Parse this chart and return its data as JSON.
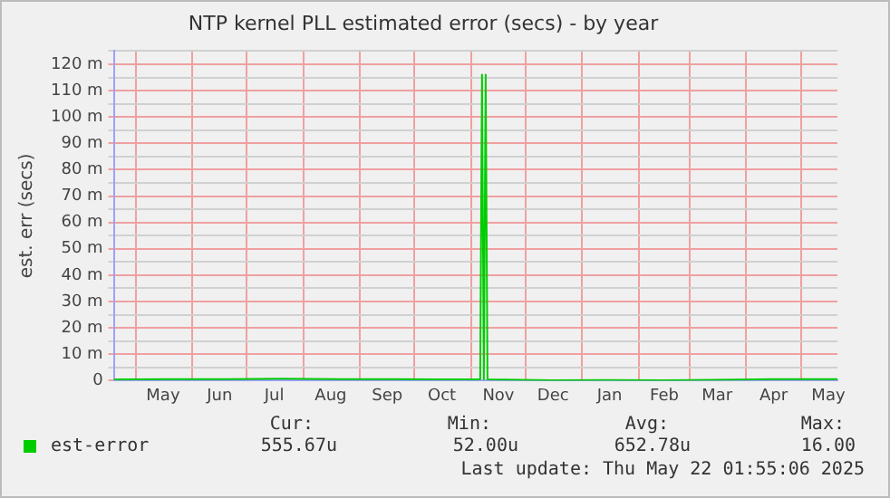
{
  "chart_data": {
    "type": "line",
    "title": "NTP kernel PLL estimated error (secs) - by year",
    "ylabel": "est. err (secs)",
    "x": [
      "2024-04-19",
      "2024-05-20",
      "2024-06-20",
      "2024-07-20",
      "2024-08-20",
      "2024-09-20",
      "2024-10-15",
      "2024-11-06",
      "2024-11-07",
      "2024-11-08",
      "2024-11-09",
      "2024-11-10",
      "2024-12-15",
      "2025-01-15",
      "2025-02-15",
      "2025-03-15",
      "2025-04-15",
      "2025-05-21"
    ],
    "series": [
      {
        "name": "est-error",
        "color": "#00cc00",
        "values": [
          0.5,
          0.6,
          0.6,
          0.7,
          0.6,
          0.6,
          0.5,
          0.5,
          116,
          0.5,
          116,
          0.5,
          0.1,
          0.2,
          0.1,
          0.3,
          0.6,
          0.6
        ]
      }
    ],
    "xlim": [
      "2024-04-19",
      "2025-05-21"
    ],
    "xticks": [
      {
        "value": "2024-05-01",
        "label": null
      },
      {
        "value": "2024-05-16",
        "label": "May"
      },
      {
        "value": "2024-06-01",
        "label": null
      },
      {
        "value": "2024-06-16",
        "label": "Jun"
      },
      {
        "value": "2024-07-01",
        "label": null
      },
      {
        "value": "2024-07-16",
        "label": "Jul"
      },
      {
        "value": "2024-08-01",
        "label": null
      },
      {
        "value": "2024-08-16",
        "label": "Aug"
      },
      {
        "value": "2024-09-01",
        "label": null
      },
      {
        "value": "2024-09-16",
        "label": "Sep"
      },
      {
        "value": "2024-10-01",
        "label": null
      },
      {
        "value": "2024-10-16",
        "label": "Oct"
      },
      {
        "value": "2024-11-01",
        "label": null
      },
      {
        "value": "2024-11-16",
        "label": "Nov"
      },
      {
        "value": "2024-12-01",
        "label": null
      },
      {
        "value": "2024-12-16",
        "label": "Dec"
      },
      {
        "value": "2025-01-01",
        "label": null
      },
      {
        "value": "2025-01-16",
        "label": "Jan"
      },
      {
        "value": "2025-02-01",
        "label": null
      },
      {
        "value": "2025-02-15",
        "label": "Feb"
      },
      {
        "value": "2025-03-01",
        "label": null
      },
      {
        "value": "2025-03-16",
        "label": "Mar"
      },
      {
        "value": "2025-04-01",
        "label": null
      },
      {
        "value": "2025-04-16",
        "label": "Apr"
      },
      {
        "value": "2025-05-01",
        "label": null
      },
      {
        "value": "2025-05-16",
        "label": "May"
      }
    ],
    "ylim": [
      0,
      125
    ],
    "yticks": [
      {
        "value": 0,
        "label": "0"
      },
      {
        "value": 5,
        "label": null
      },
      {
        "value": 10,
        "label": "10 m"
      },
      {
        "value": 15,
        "label": null
      },
      {
        "value": 20,
        "label": "20 m"
      },
      {
        "value": 25,
        "label": null
      },
      {
        "value": 30,
        "label": "30 m"
      },
      {
        "value": 35,
        "label": null
      },
      {
        "value": 40,
        "label": "40 m"
      },
      {
        "value": 45,
        "label": null
      },
      {
        "value": 50,
        "label": "50 m"
      },
      {
        "value": 55,
        "label": null
      },
      {
        "value": 60,
        "label": "60 m"
      },
      {
        "value": 65,
        "label": null
      },
      {
        "value": 70,
        "label": "70 m"
      },
      {
        "value": 75,
        "label": null
      },
      {
        "value": 80,
        "label": "80 m"
      },
      {
        "value": 85,
        "label": null
      },
      {
        "value": 90,
        "label": "90 m"
      },
      {
        "value": 95,
        "label": null
      },
      {
        "value": 100,
        "label": "100 m"
      },
      {
        "value": 105,
        "label": null
      },
      {
        "value": 110,
        "label": "110 m"
      },
      {
        "value": 115,
        "label": null
      },
      {
        "value": 120,
        "label": "120 m"
      },
      {
        "value": 125,
        "label": null
      }
    ],
    "grid": true,
    "legend": "bottom left",
    "marker": "none",
    "line_style": "solid",
    "annotations": [
      "Cur:",
      "Min:",
      "Avg:",
      "Max:",
      "555.67u",
      "52.00u",
      "652.78u",
      "16.00",
      "Last update: Thu May 22 01:55:06 2025"
    ]
  }
}
